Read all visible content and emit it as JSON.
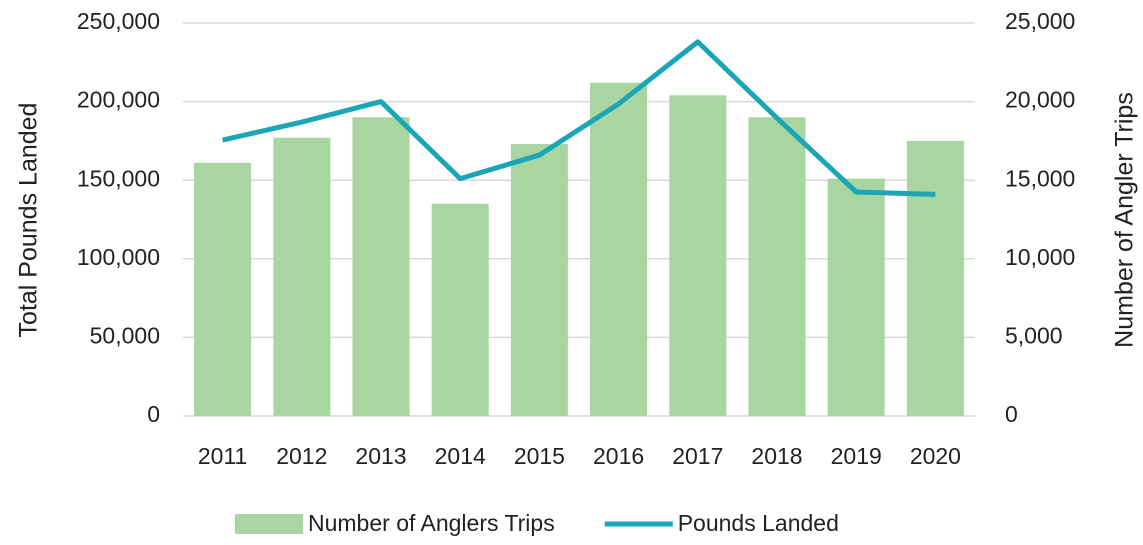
{
  "chart_data": {
    "type": "bar-line",
    "categories": [
      "2011",
      "2012",
      "2013",
      "2014",
      "2015",
      "2016",
      "2017",
      "2018",
      "2019",
      "2020"
    ],
    "y_label": "Total Pounds Landed",
    "y2_label": "Number of Angler Trips",
    "ylim": [
      0,
      250000
    ],
    "yticks": [
      0,
      {
        "value": 50000,
        "label": "50,000"
      },
      {
        "value": 100000,
        "label": "100,000"
      },
      {
        "value": 150000,
        "label": "150,000"
      },
      {
        "value": 200000,
        "label": "200,000"
      },
      {
        "value": 250000,
        "label": "250,000"
      }
    ],
    "y2lim": [
      0,
      25000
    ],
    "y2ticks": [
      0,
      {
        "value": 5000,
        "label": "5,000"
      },
      {
        "value": 10000,
        "label": "10,000"
      },
      {
        "value": 15000,
        "label": "15,000"
      },
      {
        "value": 20000,
        "label": "20,000"
      },
      {
        "value": 25000,
        "label": "25,000"
      }
    ],
    "grid": true,
    "legend": "bottom",
    "series": [
      {
        "name": "Number of Anglers Trips",
        "type": "bar",
        "axis": "y2",
        "color": "#a9d5a1",
        "values": [
          16100,
          17700,
          19000,
          13500,
          17300,
          21200,
          20400,
          19000,
          15100,
          17500
        ]
      },
      {
        "name": "Pounds Landed",
        "type": "line",
        "axis": "y",
        "color": "#1aa6b7",
        "values": [
          175500,
          187000,
          200000,
          151000,
          166000,
          198500,
          238000,
          189500,
          142500,
          141000
        ]
      }
    ]
  }
}
